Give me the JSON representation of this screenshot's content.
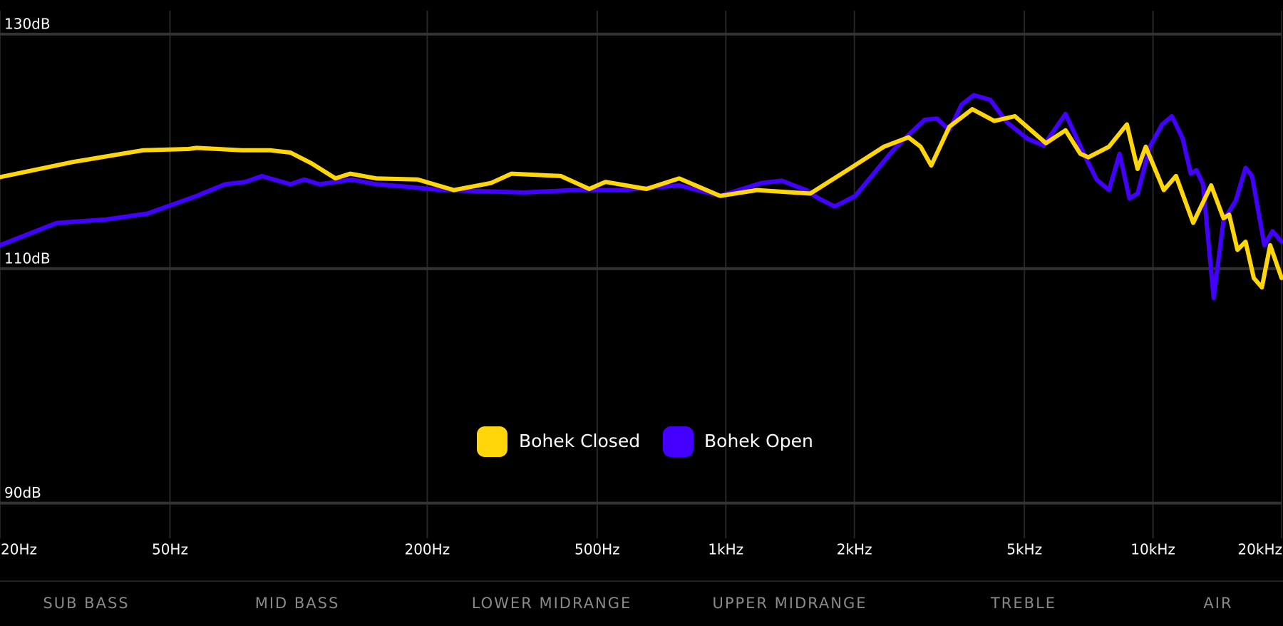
{
  "chart_data": {
    "type": "line",
    "xscale": "log",
    "xlim": [
      20,
      20000
    ],
    "ylim": [
      87,
      132
    ],
    "xticks": [
      {
        "value": 20,
        "label": "20Hz"
      },
      {
        "value": 50,
        "label": "50Hz"
      },
      {
        "value": 200,
        "label": "200Hz"
      },
      {
        "value": 500,
        "label": "500Hz"
      },
      {
        "value": 1000,
        "label": "1kHz"
      },
      {
        "value": 2000,
        "label": "2kHz"
      },
      {
        "value": 5000,
        "label": "5kHz"
      },
      {
        "value": 10000,
        "label": "10kHz"
      },
      {
        "value": 20000,
        "label": "20kHz"
      }
    ],
    "yticks": [
      {
        "value": 130,
        "label": "130dB"
      },
      {
        "value": 110,
        "label": "110dB"
      },
      {
        "value": 90,
        "label": "90dB"
      }
    ],
    "grid": true,
    "legend": "center",
    "regions": [
      "SUB BASS",
      "MID BASS",
      "LOWER MIDRANGE",
      "UPPER MIDRANGE",
      "TREBLE",
      "AIR"
    ],
    "series": [
      {
        "name": "Bohek Closed",
        "color": "#ffd60a",
        "x": [
          20,
          29.7,
          43.3,
          55.2,
          57.7,
          73.5,
          85.7,
          95.7,
          107,
          122,
          132,
          152,
          190,
          231,
          282,
          315,
          411,
          479,
          523,
          652,
          778,
          970,
          1183,
          1576,
          1964,
          2344,
          2676,
          2858,
          3027,
          3337,
          3776,
          4252,
          4749,
          5616,
          6241,
          6758,
          7062,
          7886,
          8690,
          9203,
          9616,
          10598,
          11322,
          12420,
          13684,
          14624,
          15082,
          15764,
          16472,
          17218,
          17990,
          18804,
          20000
        ],
        "values": [
          117.8,
          119.1,
          120.1,
          120.2,
          120.3,
          120.1,
          120.1,
          119.9,
          119.0,
          117.7,
          118.1,
          117.7,
          117.6,
          116.7,
          117.3,
          118.1,
          117.9,
          116.8,
          117.4,
          116.8,
          117.7,
          116.2,
          116.7,
          116.4,
          118.6,
          120.4,
          121.2,
          120.4,
          118.8,
          122.1,
          123.6,
          122.6,
          123.0,
          120.7,
          121.8,
          119.8,
          119.5,
          120.4,
          122.3,
          118.5,
          120.4,
          116.7,
          117.9,
          113.9,
          117.1,
          114.3,
          114.6,
          111.6,
          112.3,
          109.2,
          108.4,
          112.0,
          109.2
        ]
      },
      {
        "name": "Bohek Open",
        "color": "#4400ff",
        "x": [
          20,
          27.2,
          35.5,
          44.3,
          57.7,
          67.3,
          75.1,
          82.0,
          95.7,
          103,
          112,
          133,
          152,
          178,
          217,
          337,
          439,
          572,
          778,
          970,
          1210,
          1351,
          1542,
          1648,
          1799,
          2009,
          2195,
          2450,
          2676,
          2922,
          3122,
          3337,
          3565,
          3808,
          4160,
          4545,
          5075,
          5542,
          6241,
          6908,
          7379,
          7886,
          8351,
          8805,
          9203,
          9832,
          10503,
          11074,
          11732,
          12260,
          12644,
          13098,
          13868,
          14624,
          15624,
          16472,
          17062,
          18227,
          19051,
          20000
        ],
        "values": [
          112.0,
          113.9,
          114.2,
          114.7,
          116.2,
          117.2,
          117.4,
          117.9,
          117.2,
          117.6,
          117.2,
          117.6,
          117.2,
          117.0,
          116.7,
          116.5,
          116.7,
          116.7,
          117.1,
          116.2,
          117.3,
          117.5,
          116.7,
          116.0,
          115.3,
          116.2,
          117.9,
          120.0,
          121.4,
          122.7,
          122.8,
          121.8,
          124.0,
          124.8,
          124.4,
          122.5,
          121.1,
          120.5,
          123.2,
          119.7,
          117.6,
          116.7,
          119.8,
          116.0,
          116.4,
          120.4,
          122.3,
          123.0,
          121.1,
          118.1,
          118.4,
          117.2,
          107.5,
          114.1,
          115.8,
          118.6,
          117.9,
          112.0,
          113.2,
          112.3
        ]
      }
    ]
  }
}
